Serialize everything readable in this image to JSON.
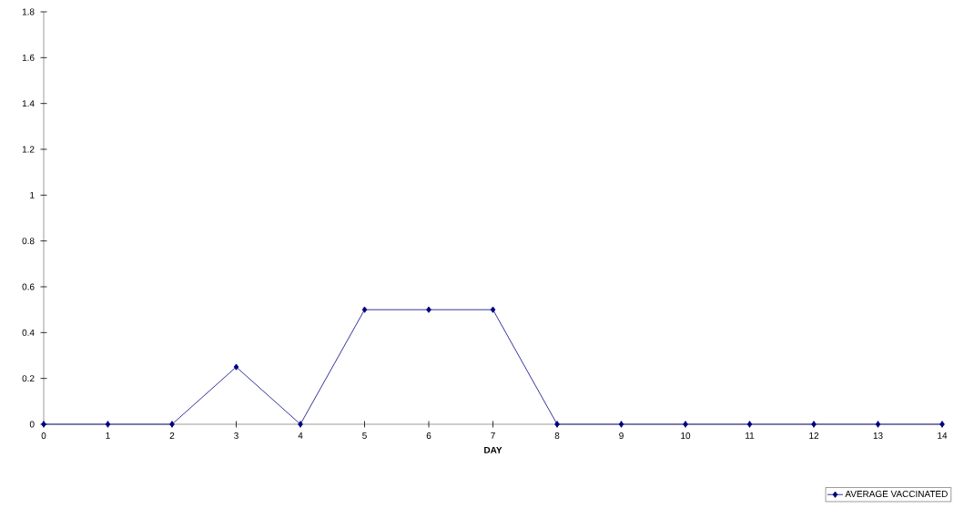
{
  "chart_data": {
    "type": "line",
    "xlabel": "DAY",
    "x": [
      0,
      1,
      2,
      3,
      4,
      5,
      6,
      7,
      8,
      9,
      10,
      11,
      12,
      13,
      14
    ],
    "series": [
      {
        "name": "AVERAGE VACCINATED",
        "color": "#000080",
        "values": [
          0,
          0,
          0,
          0.25,
          0,
          0.5,
          0.5,
          0.5,
          0,
          0,
          0,
          0,
          0,
          0,
          0
        ]
      }
    ],
    "xlim": [
      0,
      14
    ],
    "xticks": [
      0,
      1,
      2,
      3,
      4,
      5,
      6,
      7,
      8,
      9,
      10,
      11,
      12,
      13,
      14
    ],
    "ylim": [
      0,
      1.8
    ],
    "yticks": [
      0,
      0.2,
      0.4,
      0.6,
      0.8,
      1,
      1.2,
      1.4,
      1.6,
      1.8
    ],
    "grid": false,
    "legend": "bottom right",
    "marker": "diamond",
    "line_style": "solid"
  }
}
